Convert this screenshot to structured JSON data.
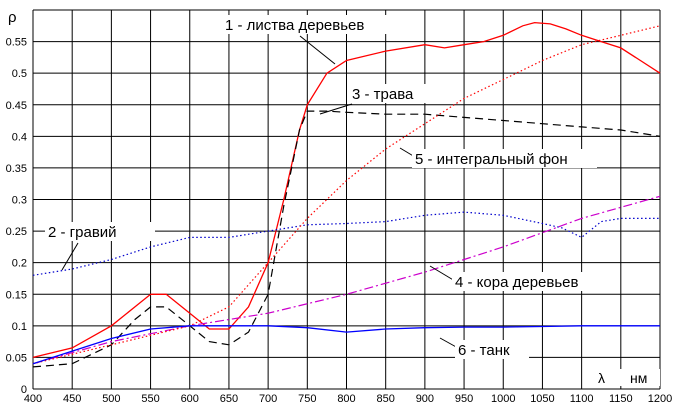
{
  "chart_data": {
    "type": "line",
    "xlabel": "λ",
    "xunit": "нм",
    "ylabel": "ρ",
    "xlim": [
      400,
      1200
    ],
    "ylim": [
      0,
      0.6
    ],
    "xticks": [
      400,
      450,
      500,
      550,
      600,
      650,
      700,
      750,
      800,
      850,
      900,
      950,
      1000,
      1050,
      1100,
      1150,
      1200
    ],
    "yticks": [
      0,
      0.05,
      0.1,
      0.15,
      0.2,
      0.25,
      0.3,
      0.35,
      0.4,
      0.45,
      0.5,
      0.55
    ],
    "ytick_labels": [
      "0",
      "0.05",
      "0.1",
      "0.15",
      "0.2",
      "0.25",
      "0.3",
      "0.35",
      "0.4",
      "0.45",
      "0.5",
      "0.55"
    ],
    "grid": true,
    "series": [
      {
        "name": "1 - листва деревьев",
        "color": "#ff0000",
        "style": "solid",
        "x": [
          400,
          450,
          500,
          530,
          550,
          570,
          600,
          625,
          650,
          675,
          700,
          720,
          740,
          750,
          775,
          800,
          850,
          900,
          925,
          950,
          975,
          1000,
          1025,
          1040,
          1060,
          1080,
          1100,
          1125,
          1150,
          1175,
          1200
        ],
        "y": [
          0.05,
          0.065,
          0.1,
          0.13,
          0.15,
          0.15,
          0.12,
          0.095,
          0.095,
          0.13,
          0.2,
          0.3,
          0.41,
          0.45,
          0.5,
          0.52,
          0.535,
          0.545,
          0.54,
          0.545,
          0.55,
          0.56,
          0.575,
          0.58,
          0.578,
          0.57,
          0.56,
          0.55,
          0.54,
          0.52,
          0.5
        ]
      },
      {
        "name": "2 - гравий",
        "color": "#0000cc",
        "style": "dotted",
        "x": [
          400,
          450,
          500,
          550,
          600,
          650,
          700,
          750,
          800,
          850,
          900,
          950,
          1000,
          1050,
          1075,
          1100,
          1125,
          1150,
          1200
        ],
        "y": [
          0.18,
          0.19,
          0.205,
          0.225,
          0.24,
          0.24,
          0.25,
          0.26,
          0.262,
          0.265,
          0.275,
          0.28,
          0.275,
          0.262,
          0.255,
          0.24,
          0.265,
          0.27,
          0.27
        ]
      },
      {
        "name": "3 - трава",
        "color": "#000000",
        "style": "dashed",
        "x": [
          400,
          450,
          500,
          530,
          550,
          570,
          600,
          625,
          650,
          675,
          700,
          720,
          740,
          750,
          775,
          800,
          850,
          900,
          950,
          1000,
          1050,
          1100,
          1150,
          1200
        ],
        "y": [
          0.035,
          0.04,
          0.07,
          0.11,
          0.13,
          0.13,
          0.1,
          0.075,
          0.07,
          0.09,
          0.15,
          0.29,
          0.41,
          0.44,
          0.44,
          0.438,
          0.435,
          0.435,
          0.43,
          0.425,
          0.42,
          0.415,
          0.41,
          0.4
        ]
      },
      {
        "name": "4 - кора деревьев",
        "color": "#cc00cc",
        "style": "dashdot",
        "x": [
          400,
          500,
          600,
          700,
          800,
          900,
          1000,
          1100,
          1200
        ],
        "y": [
          0.04,
          0.075,
          0.1,
          0.12,
          0.15,
          0.185,
          0.225,
          0.27,
          0.305
        ]
      },
      {
        "name": "5 - интегральный фон",
        "color": "#ff0000",
        "style": "dotted",
        "x": [
          400,
          500,
          600,
          650,
          700,
          750,
          800,
          850,
          900,
          950,
          1000,
          1050,
          1100,
          1150,
          1200
        ],
        "y": [
          0.04,
          0.07,
          0.1,
          0.13,
          0.2,
          0.27,
          0.33,
          0.38,
          0.42,
          0.46,
          0.49,
          0.52,
          0.545,
          0.56,
          0.575
        ]
      },
      {
        "name": "6 - танк",
        "color": "#0000ff",
        "style": "solid",
        "x": [
          400,
          450,
          500,
          550,
          600,
          650,
          700,
          750,
          800,
          850,
          900,
          950,
          1000,
          1050,
          1100,
          1150,
          1200
        ],
        "y": [
          0.04,
          0.06,
          0.08,
          0.095,
          0.1,
          0.1,
          0.1,
          0.097,
          0.09,
          0.095,
          0.097,
          0.098,
          0.098,
          0.099,
          0.1,
          0.1,
          0.1
        ]
      }
    ]
  }
}
